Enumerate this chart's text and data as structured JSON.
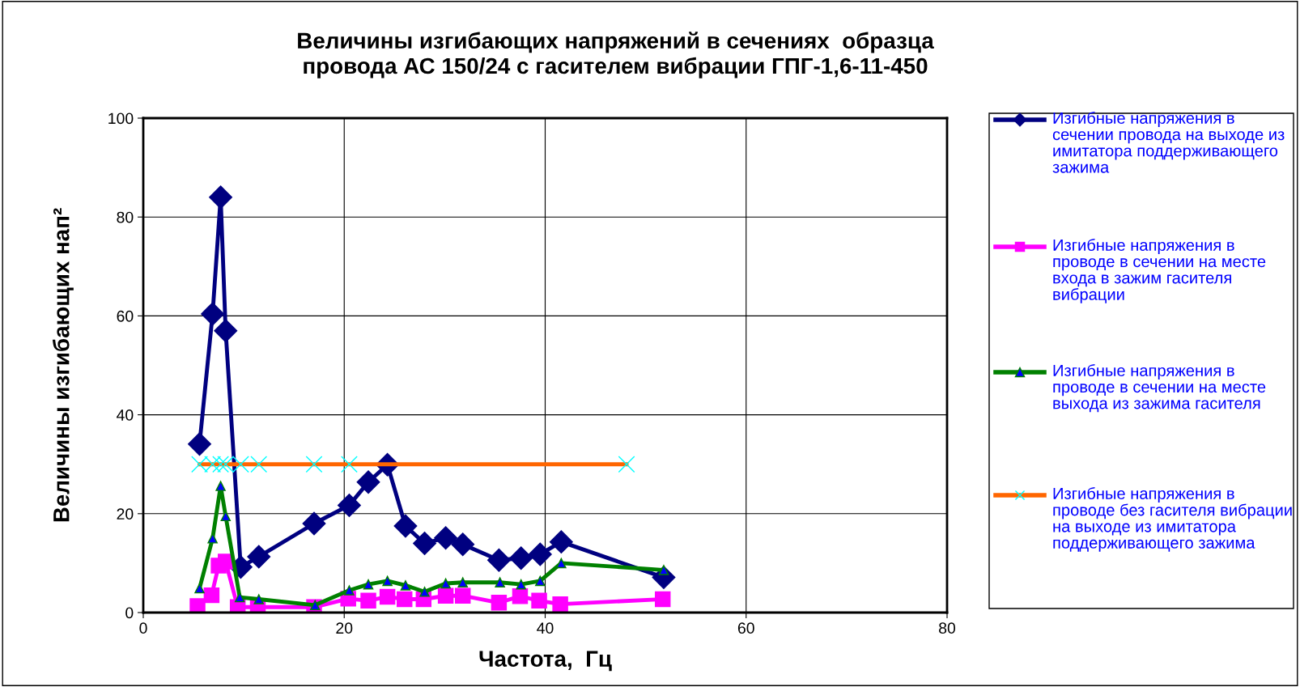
{
  "chart_data": {
    "type": "line",
    "title": "Величины изгибающих напряжений в сечениях  образца\nпровода АС 150/24 с гасителем вибрации ГПГ-1,6-11-450",
    "xlabel": "Частота,  Гц",
    "ylabel": "Величины изгибающих нап²",
    "xlim": [
      0,
      80
    ],
    "xticks": [
      0,
      20,
      40,
      60,
      80
    ],
    "ylim": [
      0,
      100
    ],
    "yticks": [
      0,
      20,
      40,
      60,
      80,
      100
    ],
    "grid": true,
    "legend": "right",
    "line_style": "solid",
    "series": [
      {
        "name": "Изгибные напряжения в сечении провода на выходе из имитатора поддерживающего зажима",
        "color": "#000080",
        "marker": "diamond",
        "x": [
          5.6,
          6.9,
          7.7,
          8.2,
          9.7,
          11.5,
          17.0,
          20.5,
          22.4,
          24.3,
          26.1,
          28.0,
          30.1,
          31.8,
          35.4,
          37.6,
          39.5,
          41.6,
          51.8
        ],
        "values": [
          34.1,
          60.4,
          84.0,
          57.0,
          9.2,
          11.3,
          18.0,
          21.7,
          26.4,
          29.9,
          17.5,
          14.0,
          15.1,
          13.8,
          10.6,
          11.0,
          11.8,
          14.3,
          7.1
        ]
      },
      {
        "name": "Изгибные напряжения в проводе в сечении на месте входа в зажим гасителя вибрации",
        "color": "#ff00ff",
        "marker": "square",
        "x": [
          5.4,
          6.8,
          7.5,
          8.2,
          9.4,
          11.4,
          17.0,
          20.4,
          22.4,
          24.3,
          26.0,
          27.9,
          30.1,
          31.8,
          35.4,
          37.5,
          39.4,
          41.5,
          51.7
        ],
        "values": [
          1.3,
          3.5,
          9.5,
          10.3,
          1.1,
          1.1,
          1.1,
          2.8,
          2.4,
          3.2,
          2.7,
          2.7,
          3.4,
          3.4,
          2.0,
          3.3,
          2.4,
          1.7,
          2.7
        ]
      },
      {
        "name": "Изгибные напряжения в проводе в сечении на месте выхода из зажима гасителя",
        "color": "#008000",
        "marker": "triangle",
        "x": [
          5.6,
          6.9,
          7.7,
          8.2,
          9.6,
          11.5,
          17.1,
          20.5,
          22.4,
          24.3,
          26.1,
          28.0,
          30.1,
          31.8,
          35.5,
          37.6,
          39.5,
          41.6,
          51.8
        ],
        "values": [
          4.9,
          15.0,
          25.6,
          19.5,
          3.1,
          2.7,
          1.5,
          4.5,
          5.7,
          6.4,
          5.5,
          4.2,
          5.9,
          6.1,
          6.1,
          5.7,
          6.4,
          10.0,
          8.6
        ]
      },
      {
        "name": "Изгибные напряжения в проводе без гасителя вибрации на выходе из имитатора поддерживающего зажима",
        "color": "#ff6600",
        "marker": "cross",
        "x": [
          5.6,
          6.9,
          7.7,
          8.2,
          9.7,
          11.5,
          17.0,
          20.5,
          48.1
        ],
        "values": [
          30,
          30,
          30,
          30,
          30,
          30,
          30,
          30,
          30
        ]
      }
    ]
  }
}
